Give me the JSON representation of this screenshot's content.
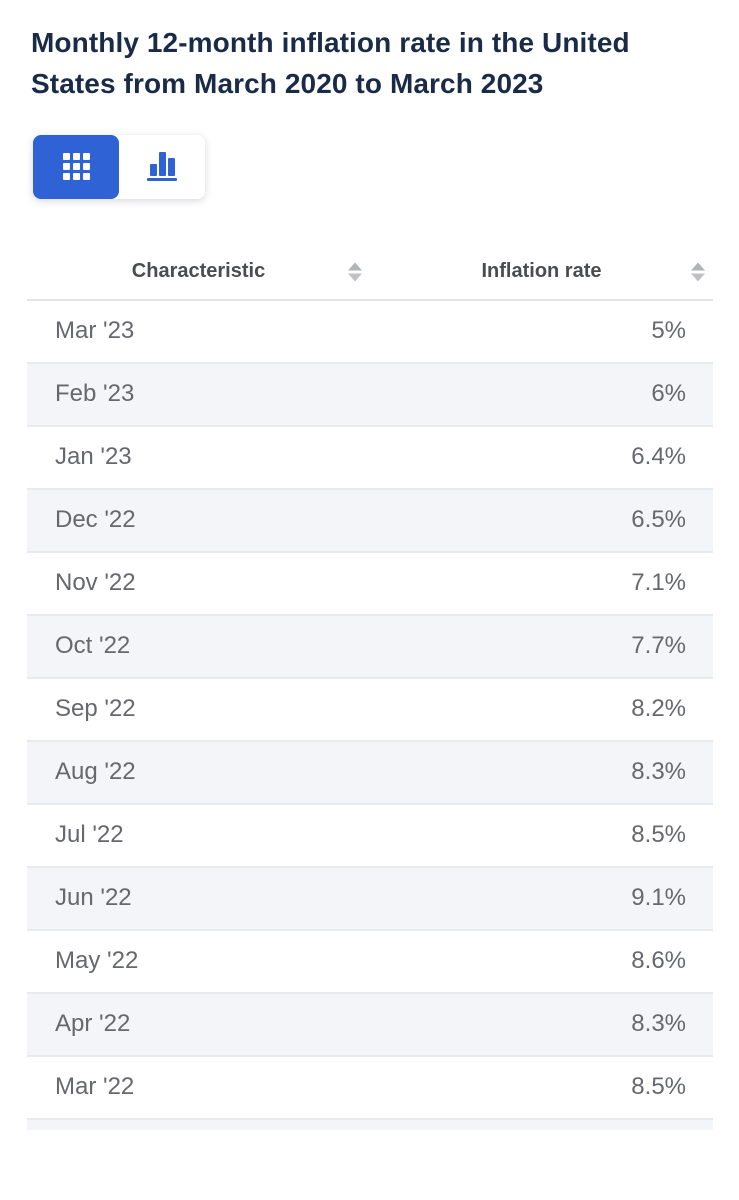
{
  "title": "Monthly 12-month inflation rate in the United States from March 2020 to March 2023",
  "accent_color": "#2f63d5",
  "alt_row_color": "#f4f5f9",
  "title_color": "#1a2b47",
  "toolbar": {
    "active_view": "table",
    "table_view_icon": "grid-icon",
    "chart_view_icon": "bar-chart-icon"
  },
  "table": {
    "columns": [
      "Characteristic",
      "Inflation rate"
    ],
    "rows": [
      {
        "characteristic": "Mar '23",
        "rate": "5%"
      },
      {
        "characteristic": "Feb '23",
        "rate": "6%"
      },
      {
        "characteristic": "Jan '23",
        "rate": "6.4%"
      },
      {
        "characteristic": "Dec '22",
        "rate": "6.5%"
      },
      {
        "characteristic": "Nov '22",
        "rate": "7.1%"
      },
      {
        "characteristic": "Oct '22",
        "rate": "7.7%"
      },
      {
        "characteristic": "Sep '22",
        "rate": "8.2%"
      },
      {
        "characteristic": "Aug '22",
        "rate": "8.3%"
      },
      {
        "characteristic": "Jul '22",
        "rate": "8.5%"
      },
      {
        "characteristic": "Jun '22",
        "rate": "9.1%"
      },
      {
        "characteristic": "May '22",
        "rate": "8.6%"
      },
      {
        "characteristic": "Apr '22",
        "rate": "8.3%"
      },
      {
        "characteristic": "Mar '22",
        "rate": "8.5%"
      }
    ]
  },
  "chart_data": {
    "type": "table",
    "title": "Monthly 12-month inflation rate in the United States from March 2020 to March 2023",
    "columns": [
      "Characteristic",
      "Inflation rate"
    ],
    "categories": [
      "Mar '23",
      "Feb '23",
      "Jan '23",
      "Dec '22",
      "Nov '22",
      "Oct '22",
      "Sep '22",
      "Aug '22",
      "Jul '22",
      "Jun '22",
      "May '22",
      "Apr '22",
      "Mar '22"
    ],
    "values": [
      5,
      6,
      6.4,
      6.5,
      7.1,
      7.7,
      8.2,
      8.3,
      8.5,
      9.1,
      8.6,
      8.3,
      8.5
    ],
    "unit": "%"
  }
}
